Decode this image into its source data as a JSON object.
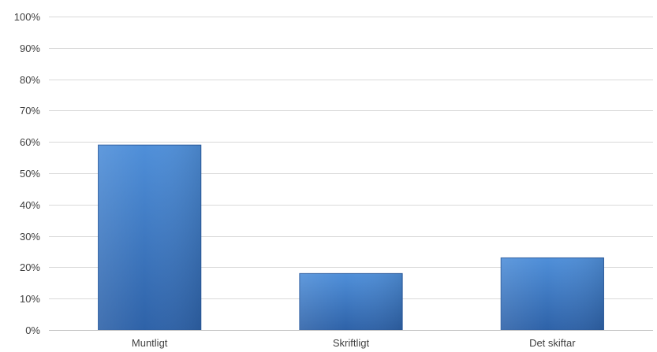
{
  "chart_data": {
    "type": "bar",
    "title": "",
    "xlabel": "",
    "ylabel": "",
    "categories": [
      "Muntligt",
      "Skriftligt",
      "Det skiftar"
    ],
    "values": [
      59,
      18,
      23
    ],
    "value_unit": "%",
    "ylim": [
      0,
      100
    ],
    "y_ticks": [
      "0%",
      "10%",
      "20%",
      "30%",
      "40%",
      "50%",
      "60%",
      "70%",
      "80%",
      "90%",
      "100%"
    ],
    "grid": true,
    "legend": "none",
    "colors": {
      "bar_top": "#4f8fd9",
      "bar_bottom": "#2e62a8",
      "bar_edge": "#2b5c9f",
      "grid": "#d9d9d9",
      "axis": "#bfbfbf",
      "text": "#404040"
    }
  }
}
